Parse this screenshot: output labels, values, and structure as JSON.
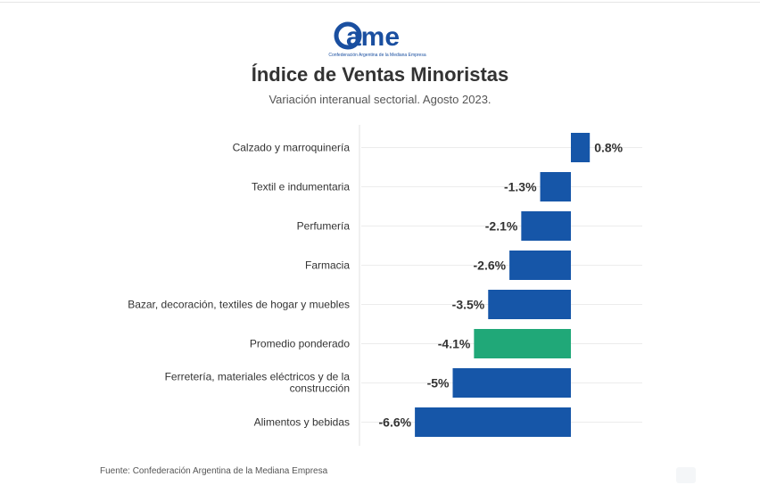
{
  "logo": {
    "text": "ame",
    "tagline": "Confederación Argentina de la Mediana Empresa",
    "color": "#1a4fa0"
  },
  "header": {
    "title": "Índice de Ventas Minoristas",
    "subtitle": "Variación interanual sectorial. Agosto 2023."
  },
  "chart_data": {
    "type": "bar",
    "orientation": "horizontal",
    "categories": [
      "Calzado y marroquinería",
      "Textil e indumentaria",
      "Perfumería",
      "Farmacia",
      "Bazar, decoración, textiles de hogar y muebles",
      "Promedio ponderado",
      "Ferretería, materiales eléctricos y de la construcción",
      "Alimentos y bebidas"
    ],
    "values": [
      0.8,
      -1.3,
      -2.1,
      -2.6,
      -3.5,
      -4.1,
      -5,
      -6.6
    ],
    "labels": [
      "0.8%",
      "-1.3%",
      "-2.1%",
      "-2.6%",
      "-3.5%",
      "-4.1%",
      "-5%",
      "-6.6%"
    ],
    "colors": [
      "#1656a8",
      "#1656a8",
      "#1656a8",
      "#1656a8",
      "#1656a8",
      "#20a878",
      "#1656a8",
      "#1656a8"
    ],
    "xlim": [
      -6.6,
      0.8
    ],
    "grid": true,
    "legend": "none"
  },
  "footer": {
    "source": "Fuente: Confederación Argentina de la Mediana Empresa"
  }
}
